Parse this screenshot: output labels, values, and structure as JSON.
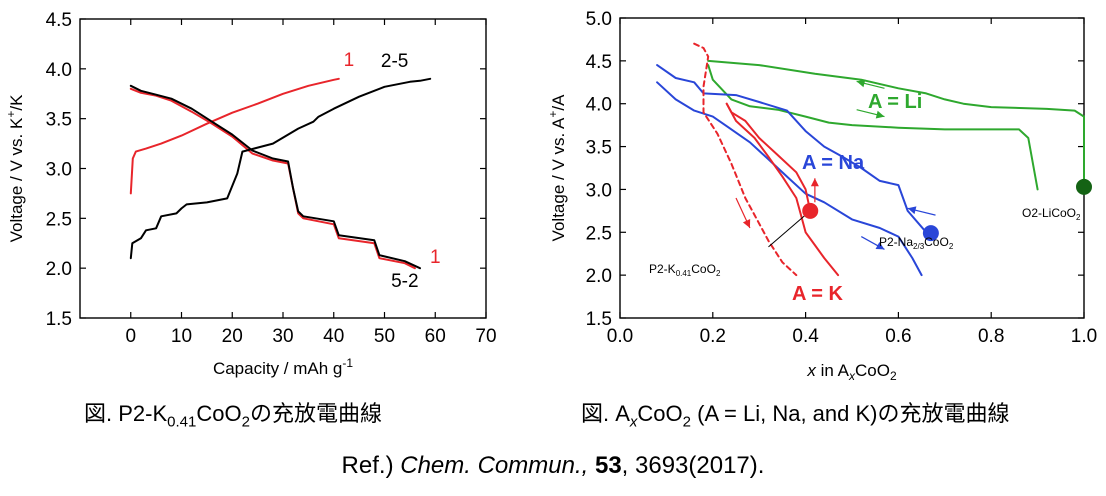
{
  "chart_data": [
    {
      "type": "line",
      "xlabel": "Capacity / mAh g",
      "xlabel_sup": "-1",
      "ylabel": "Voltage / V vs. K",
      "ylabel_sup": "+",
      "ylabel_tail": "/K",
      "xlim": [
        -10,
        70
      ],
      "ylim": [
        1.5,
        4.5
      ],
      "xticks": [
        0,
        10,
        20,
        30,
        40,
        50,
        60,
        70
      ],
      "yticks": [
        1.5,
        2.0,
        2.5,
        3.0,
        3.5,
        4.0,
        4.5
      ],
      "colors": {
        "cycle1": "#e8252b",
        "cycle2_5": "#000000"
      },
      "series": [
        {
          "color": "#e8252b",
          "points": [
            [
              0,
              2.75
            ],
            [
              0.4,
              3.1
            ],
            [
              1,
              3.17
            ],
            [
              3,
              3.2
            ],
            [
              6,
              3.25
            ],
            [
              10,
              3.33
            ],
            [
              15,
              3.45
            ],
            [
              20,
              3.56
            ],
            [
              25,
              3.65
            ],
            [
              30,
              3.75
            ],
            [
              35,
              3.83
            ],
            [
              40,
              3.89
            ],
            [
              41,
              3.9
            ]
          ]
        },
        {
          "color": "#e8252b",
          "points": [
            [
              0,
              3.8
            ],
            [
              2,
              3.76
            ],
            [
              5,
              3.73
            ],
            [
              8,
              3.68
            ],
            [
              12,
              3.57
            ],
            [
              16,
              3.45
            ],
            [
              20,
              3.32
            ],
            [
              24,
              3.15
            ],
            [
              28,
              3.08
            ],
            [
              31,
              3.05
            ],
            [
              32,
              2.8
            ],
            [
              33,
              2.55
            ],
            [
              34,
              2.5
            ],
            [
              40,
              2.44
            ],
            [
              41,
              2.3
            ],
            [
              48,
              2.25
            ],
            [
              49,
              2.1
            ],
            [
              54,
              2.05
            ],
            [
              56,
              2.0
            ]
          ]
        },
        {
          "color": "#000000",
          "points": [
            [
              0,
              3.83
            ],
            [
              2,
              3.78
            ],
            [
              5,
              3.74
            ],
            [
              8,
              3.7
            ],
            [
              12,
              3.6
            ],
            [
              16,
              3.47
            ],
            [
              20,
              3.34
            ],
            [
              24,
              3.18
            ],
            [
              28,
              3.1
            ],
            [
              31,
              3.07
            ],
            [
              32,
              2.8
            ],
            [
              33,
              2.57
            ],
            [
              34,
              2.52
            ],
            [
              40,
              2.47
            ],
            [
              41,
              2.33
            ],
            [
              48,
              2.28
            ],
            [
              49,
              2.13
            ],
            [
              54,
              2.07
            ],
            [
              57,
              2.0
            ]
          ]
        },
        {
          "color": "#000000",
          "points": [
            [
              0,
              2.1
            ],
            [
              0.3,
              2.25
            ],
            [
              2,
              2.3
            ],
            [
              3,
              2.38
            ],
            [
              5,
              2.4
            ],
            [
              6,
              2.52
            ],
            [
              9,
              2.55
            ],
            [
              10,
              2.6
            ],
            [
              11,
              2.64
            ],
            [
              15,
              2.66
            ],
            [
              19,
              2.7
            ],
            [
              21,
              2.95
            ],
            [
              22,
              3.17
            ],
            [
              28,
              3.25
            ],
            [
              33,
              3.4
            ],
            [
              36,
              3.47
            ],
            [
              37,
              3.52
            ],
            [
              40,
              3.6
            ],
            [
              45,
              3.72
            ],
            [
              50,
              3.82
            ],
            [
              55,
              3.87
            ],
            [
              57,
              3.88
            ],
            [
              58,
              3.89
            ],
            [
              59,
              3.9
            ]
          ]
        }
      ],
      "annotations": [
        {
          "text": "1",
          "color": "#e8252b",
          "x": 43,
          "y": 4.03
        },
        {
          "text": "2-5",
          "color": "#000000",
          "x": 52,
          "y": 4.02
        },
        {
          "text": "1",
          "color": "#e8252b",
          "x": 60,
          "y": 2.05
        },
        {
          "text": "5-2",
          "color": "#000000",
          "x": 54,
          "y": 1.81
        }
      ]
    },
    {
      "type": "line",
      "xlabel_var": "x",
      "xlabel": " in A",
      "xlabel_sub_var": "x",
      "xlabel_tail": "CoO",
      "xlabel_tail_sub": "2",
      "ylabel": "Voltage / V vs. A",
      "ylabel_sup": "+",
      "ylabel_tail": "/A",
      "xlim": [
        0.0,
        1.0
      ],
      "ylim": [
        1.5,
        5.0
      ],
      "xticks": [
        0.0,
        0.2,
        0.4,
        0.6,
        0.8,
        1.0
      ],
      "yticks": [
        1.5,
        2.0,
        2.5,
        3.0,
        3.5,
        4.0,
        4.5,
        5.0
      ],
      "colors": {
        "Li": "#2ea82e",
        "Na": "#2946d8",
        "K": "#e8252b",
        "Li_marker": "#146314"
      },
      "series": [
        {
          "color": "#2ea82e",
          "dashed": false,
          "points": [
            [
              0.19,
              4.5
            ],
            [
              0.3,
              4.45
            ],
            [
              0.42,
              4.35
            ],
            [
              0.52,
              4.28
            ],
            [
              0.6,
              4.18
            ],
            [
              0.66,
              4.12
            ],
            [
              0.7,
              4.05
            ],
            [
              0.74,
              4.0
            ],
            [
              0.8,
              3.96
            ],
            [
              0.92,
              3.94
            ],
            [
              0.98,
              3.92
            ],
            [
              1.0,
              3.85
            ],
            [
              1.0,
              3.0
            ]
          ]
        },
        {
          "color": "#2ea82e",
          "dashed": false,
          "points": [
            [
              0.19,
              4.45
            ],
            [
              0.2,
              4.28
            ],
            [
              0.24,
              4.05
            ],
            [
              0.28,
              3.97
            ],
            [
              0.34,
              3.93
            ],
            [
              0.4,
              3.85
            ],
            [
              0.45,
              3.78
            ],
            [
              0.5,
              3.75
            ],
            [
              0.6,
              3.72
            ],
            [
              0.7,
              3.7
            ],
            [
              0.86,
              3.7
            ],
            [
              0.88,
              3.6
            ],
            [
              0.9,
              3.0
            ]
          ]
        },
        {
          "color": "#2946d8",
          "dashed": false,
          "points": [
            [
              0.08,
              4.45
            ],
            [
              0.12,
              4.3
            ],
            [
              0.16,
              4.25
            ],
            [
              0.18,
              4.12
            ],
            [
              0.25,
              4.1
            ],
            [
              0.3,
              4.02
            ],
            [
              0.36,
              3.92
            ],
            [
              0.4,
              3.68
            ],
            [
              0.44,
              3.5
            ],
            [
              0.48,
              3.38
            ],
            [
              0.52,
              3.25
            ],
            [
              0.56,
              3.1
            ],
            [
              0.6,
              3.05
            ],
            [
              0.62,
              2.75
            ],
            [
              0.66,
              2.5
            ]
          ]
        },
        {
          "color": "#2946d8",
          "dashed": false,
          "points": [
            [
              0.08,
              4.25
            ],
            [
              0.12,
              4.05
            ],
            [
              0.16,
              3.92
            ],
            [
              0.2,
              3.85
            ],
            [
              0.24,
              3.7
            ],
            [
              0.28,
              3.55
            ],
            [
              0.32,
              3.35
            ],
            [
              0.36,
              3.15
            ],
            [
              0.4,
              2.95
            ],
            [
              0.44,
              2.85
            ],
            [
              0.5,
              2.65
            ],
            [
              0.56,
              2.55
            ],
            [
              0.6,
              2.45
            ],
            [
              0.63,
              2.2
            ],
            [
              0.65,
              2.0
            ]
          ]
        },
        {
          "color": "#e8252b",
          "dashed": true,
          "points": [
            [
              0.16,
              4.7
            ],
            [
              0.18,
              4.65
            ],
            [
              0.19,
              4.55
            ],
            [
              0.18,
              4.2
            ],
            [
              0.18,
              3.9
            ],
            [
              0.21,
              3.65
            ],
            [
              0.24,
              3.3
            ],
            [
              0.27,
              2.9
            ],
            [
              0.29,
              2.7
            ],
            [
              0.32,
              2.4
            ],
            [
              0.35,
              2.15
            ],
            [
              0.38,
              2.0
            ]
          ]
        },
        {
          "color": "#e8252b",
          "dashed": false,
          "points": [
            [
              0.23,
              4.0
            ],
            [
              0.25,
              3.8
            ],
            [
              0.29,
              3.6
            ],
            [
              0.32,
              3.38
            ],
            [
              0.35,
              3.15
            ],
            [
              0.38,
              2.9
            ],
            [
              0.39,
              2.7
            ],
            [
              0.4,
              2.5
            ],
            [
              0.42,
              2.35
            ],
            [
              0.44,
              2.2
            ],
            [
              0.47,
              2.0
            ]
          ]
        },
        {
          "color": "#e8252b",
          "dashed": false,
          "points": [
            [
              0.41,
              2.75
            ],
            [
              0.4,
              3.0
            ],
            [
              0.38,
              3.2
            ],
            [
              0.34,
              3.4
            ],
            [
              0.3,
              3.6
            ],
            [
              0.27,
              3.8
            ],
            [
              0.24,
              3.9
            ],
            [
              0.23,
              4.0
            ]
          ]
        }
      ],
      "markers": [
        {
          "color": "#146314",
          "x": 1.0,
          "y": 3.03
        },
        {
          "color": "#2946d8",
          "x": 0.67,
          "y": 2.49
        },
        {
          "color": "#e8252b",
          "x": 0.41,
          "y": 2.75
        }
      ],
      "arrows": [
        {
          "color": "#2ea82e",
          "from": [
            0.57,
            4.18
          ],
          "to": [
            0.51,
            4.26
          ]
        },
        {
          "color": "#2ea82e",
          "from": [
            0.51,
            3.93
          ],
          "to": [
            0.57,
            3.85
          ]
        },
        {
          "color": "#2946d8",
          "from": [
            0.68,
            2.7
          ],
          "to": [
            0.62,
            2.78
          ]
        },
        {
          "color": "#2946d8",
          "from": [
            0.52,
            2.45
          ],
          "to": [
            0.57,
            2.3
          ]
        },
        {
          "color": "#e8252b",
          "from": [
            0.42,
            2.85
          ],
          "to": [
            0.42,
            3.13
          ]
        },
        {
          "color": "#e8252b",
          "from": [
            0.25,
            2.9
          ],
          "to": [
            0.28,
            2.55
          ]
        }
      ],
      "labels": {
        "li": "A = Li",
        "na": "A = Na",
        "k": "A = K",
        "o2": "O2-LiCoO",
        "o2_sub": "2",
        "na_p2": "P2-Na",
        "na_p2_sub": "2/3",
        "na_p2_tail": "CoO",
        "na_p2_tail_sub": "2",
        "k_p2": "P2-K",
        "k_p2_sub": "0.41",
        "k_p2_tail": "CoO",
        "k_p2_tail_sub": "2"
      }
    }
  ],
  "captions": {
    "left": {
      "prefix": "図. P2-K",
      "sub1": "0.41",
      "mid": "CoO",
      "sub2": "2",
      "tail": "の充放電曲線"
    },
    "right": {
      "prefix": "図. A",
      "sub1": "x",
      "mid": "CoO",
      "sub2": "2",
      "tail": " (A = Li, Na, and K)の充放電曲線"
    }
  },
  "reference": {
    "prefix": "Ref.) ",
    "journal": "Chem. Commun.,",
    "volume": "53",
    "rest": ", 3693(2017)."
  }
}
